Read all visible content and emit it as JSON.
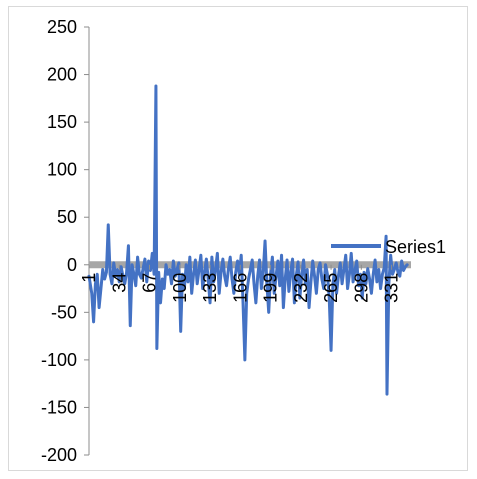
{
  "chart_data": {
    "type": "line",
    "title": "",
    "xlabel": "",
    "ylabel": "",
    "ylim": [
      -200,
      250
    ],
    "y_ticks": [
      250,
      200,
      150,
      100,
      50,
      0,
      -50,
      -100,
      -150,
      -200
    ],
    "x_tick_labels": [
      "1",
      "34",
      "67",
      "100",
      "133",
      "166",
      "199",
      "232",
      "265",
      "298",
      "331"
    ],
    "x_count": 350,
    "legend_position": "right",
    "grid": false,
    "colors": {
      "series": "#4472c4",
      "axis": "#8c8c8c",
      "zero_band": "#a6a6a6"
    },
    "series": [
      {
        "name": "Series1",
        "points": [
          [
            1,
            -12
          ],
          [
            4,
            -30
          ],
          [
            6,
            -60
          ],
          [
            8,
            -20
          ],
          [
            10,
            -10
          ],
          [
            12,
            -45
          ],
          [
            14,
            -25
          ],
          [
            16,
            -5
          ],
          [
            18,
            -15
          ],
          [
            20,
            -8
          ],
          [
            22,
            42
          ],
          [
            24,
            -10
          ],
          [
            26,
            -20
          ],
          [
            28,
            2
          ],
          [
            30,
            -12
          ],
          [
            32,
            -5
          ],
          [
            34,
            -18
          ],
          [
            36,
            -2
          ],
          [
            38,
            -12
          ],
          [
            40,
            -20
          ],
          [
            42,
            -8
          ],
          [
            44,
            20
          ],
          [
            46,
            -64
          ],
          [
            48,
            0
          ],
          [
            50,
            -10
          ],
          [
            52,
            -22
          ],
          [
            54,
            8
          ],
          [
            56,
            -10
          ],
          [
            58,
            -14
          ],
          [
            60,
            -4
          ],
          [
            62,
            6
          ],
          [
            64,
            -18
          ],
          [
            66,
            4
          ],
          [
            68,
            -6
          ],
          [
            70,
            12
          ],
          [
            72,
            -10
          ],
          [
            74,
            188
          ],
          [
            75,
            -88
          ],
          [
            77,
            -8
          ],
          [
            79,
            -40
          ],
          [
            81,
            -15
          ],
          [
            83,
            -25
          ],
          [
            85,
            0
          ],
          [
            87,
            -10
          ],
          [
            89,
            -5
          ],
          [
            91,
            -20
          ],
          [
            93,
            4
          ],
          [
            95,
            -12
          ],
          [
            97,
            -5
          ],
          [
            99,
            2
          ],
          [
            101,
            -70
          ],
          [
            103,
            -10
          ],
          [
            105,
            -25
          ],
          [
            107,
            0
          ],
          [
            109,
            -18
          ],
          [
            111,
            8
          ],
          [
            113,
            -30
          ],
          [
            115,
            -10
          ],
          [
            117,
            5
          ],
          [
            119,
            -20
          ],
          [
            121,
            -5
          ],
          [
            123,
            10
          ],
          [
            125,
            -25
          ],
          [
            127,
            -8
          ],
          [
            129,
            6
          ],
          [
            131,
            -15
          ],
          [
            133,
            -40
          ],
          [
            135,
            8
          ],
          [
            137,
            -18
          ],
          [
            139,
            -5
          ],
          [
            141,
            12
          ],
          [
            143,
            -30
          ],
          [
            145,
            -8
          ],
          [
            147,
            6
          ],
          [
            149,
            -12
          ],
          [
            151,
            -22
          ],
          [
            153,
            -5
          ],
          [
            155,
            8
          ],
          [
            157,
            -15
          ],
          [
            159,
            -30
          ],
          [
            161,
            -8
          ],
          [
            163,
            4
          ],
          [
            165,
            -10
          ],
          [
            167,
            10
          ],
          [
            169,
            -40
          ],
          [
            171,
            -100
          ],
          [
            173,
            -30
          ],
          [
            175,
            -15
          ],
          [
            177,
            -5
          ],
          [
            179,
            5
          ],
          [
            181,
            -20
          ],
          [
            183,
            -40
          ],
          [
            185,
            -12
          ],
          [
            187,
            5
          ],
          [
            189,
            -25
          ],
          [
            191,
            -8
          ],
          [
            193,
            25
          ],
          [
            195,
            -20
          ],
          [
            197,
            -50
          ],
          [
            199,
            -10
          ],
          [
            201,
            8
          ],
          [
            203,
            -30
          ],
          [
            205,
            -12
          ],
          [
            207,
            4
          ],
          [
            209,
            -22
          ],
          [
            211,
            10
          ],
          [
            213,
            -45
          ],
          [
            215,
            -15
          ],
          [
            217,
            5
          ],
          [
            219,
            -28
          ],
          [
            221,
            -8
          ],
          [
            223,
            6
          ],
          [
            225,
            -40
          ],
          [
            227,
            -12
          ],
          [
            229,
            3
          ],
          [
            231,
            -35
          ],
          [
            233,
            -10
          ],
          [
            235,
            5
          ],
          [
            237,
            -20
          ],
          [
            239,
            -5
          ],
          [
            241,
            -45
          ],
          [
            243,
            -18
          ],
          [
            245,
            4
          ],
          [
            247,
            -12
          ],
          [
            249,
            -30
          ],
          [
            251,
            -5
          ],
          [
            253,
            2
          ],
          [
            255,
            -15
          ],
          [
            257,
            -25
          ],
          [
            259,
            0
          ],
          [
            261,
            -10
          ],
          [
            263,
            -35
          ],
          [
            265,
            -90
          ],
          [
            267,
            -20
          ],
          [
            269,
            -5
          ],
          [
            271,
            -30
          ],
          [
            273,
            -12
          ],
          [
            275,
            2
          ],
          [
            277,
            -20
          ],
          [
            279,
            -5
          ],
          [
            281,
            10
          ],
          [
            283,
            -25
          ],
          [
            285,
            -10
          ],
          [
            287,
            12
          ],
          [
            289,
            -18
          ],
          [
            291,
            -6
          ],
          [
            293,
            4
          ],
          [
            295,
            -22
          ],
          [
            297,
            -10
          ],
          [
            299,
            -35
          ],
          [
            301,
            -8
          ],
          [
            303,
            -20
          ],
          [
            305,
            -4
          ],
          [
            307,
            -15
          ],
          [
            309,
            -30
          ],
          [
            311,
            -10
          ],
          [
            313,
            5
          ],
          [
            315,
            -18
          ],
          [
            317,
            -5
          ],
          [
            319,
            -25
          ],
          [
            321,
            -10
          ],
          [
            323,
            -3
          ],
          [
            325,
            30
          ],
          [
            326,
            -136
          ],
          [
            328,
            -20
          ],
          [
            330,
            10
          ],
          [
            332,
            -10
          ],
          [
            334,
            -5
          ],
          [
            336,
            2
          ],
          [
            338,
            -8
          ],
          [
            340,
            -12
          ],
          [
            342,
            4
          ],
          [
            344,
            -6
          ],
          [
            346,
            -2
          ],
          [
            348,
            0
          ]
        ]
      }
    ]
  }
}
